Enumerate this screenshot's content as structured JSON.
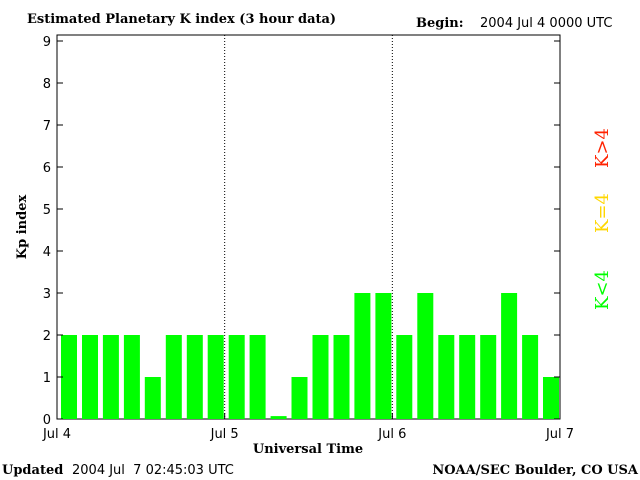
{
  "header": {
    "title": "Estimated Planetary K index (3 hour data)",
    "begin_label": "Begin:",
    "begin_value": "2004 Jul 4 0000 UTC"
  },
  "footer": {
    "updated_label": "Updated",
    "updated_value": "2004 Jul  7 02:45:03 UTC",
    "credit": "NOAA/SEC Boulder, CO USA"
  },
  "legend": {
    "items": [
      {
        "label": "K<4",
        "color": "#00ff00"
      },
      {
        "label": "K=4",
        "color": "#ffd700"
      },
      {
        "label": "K>4",
        "color": "#ff2200"
      }
    ]
  },
  "chart_data": {
    "type": "bar",
    "title": "Estimated Planetary K index (3 hour data)",
    "xlabel": "Universal Time",
    "ylabel": "Kp index",
    "ylim": [
      0,
      9
    ],
    "yticks": [
      0,
      1,
      2,
      3,
      4,
      5,
      6,
      7,
      8,
      9
    ],
    "xticks": [
      "Jul 4",
      "Jul 5",
      "Jul 6",
      "Jul 7"
    ],
    "day_dividers": [
      "Jul 5",
      "Jul 6"
    ],
    "bar_color": "#00ff00",
    "interval_hours": 3,
    "values": [
      2,
      2,
      2,
      2,
      1,
      2,
      2,
      2,
      2,
      2,
      0.07,
      1,
      2,
      2,
      3,
      3,
      2,
      3,
      2,
      2,
      2,
      3,
      2,
      1
    ]
  }
}
